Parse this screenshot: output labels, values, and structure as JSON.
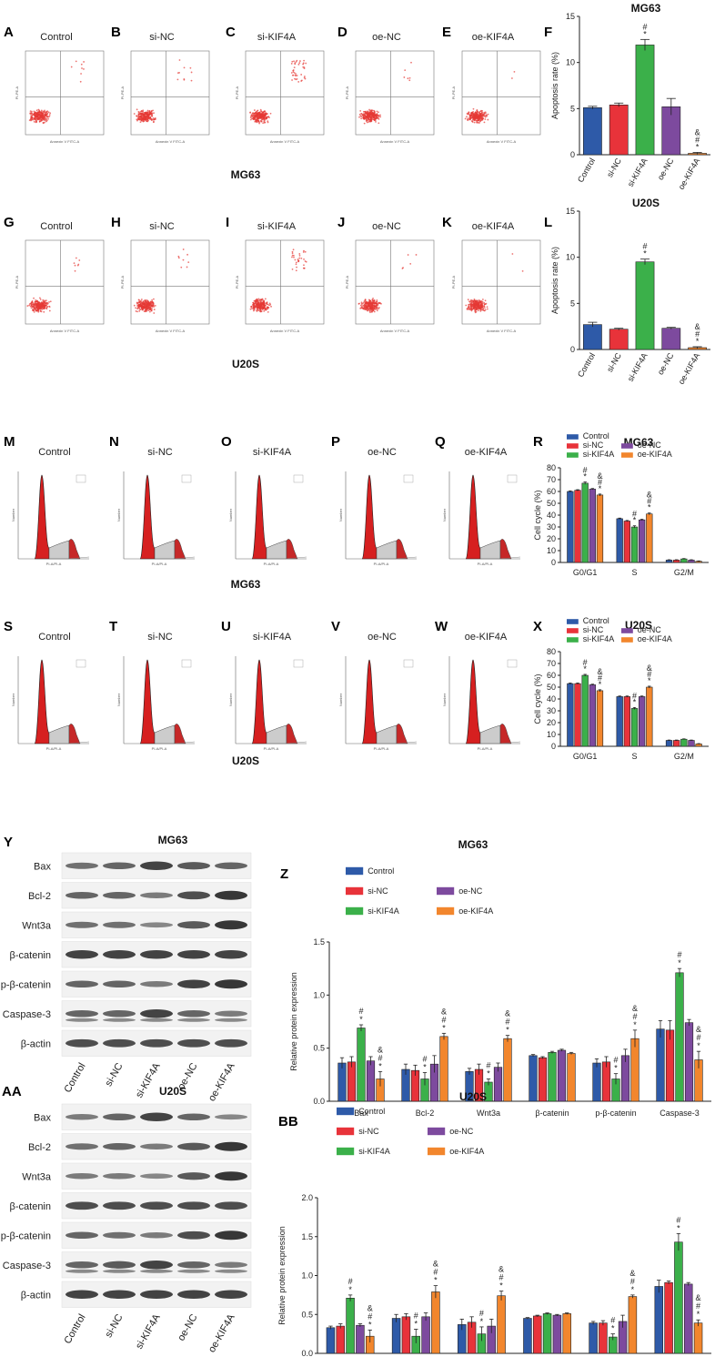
{
  "panel_letters": {
    "A": "A",
    "B": "B",
    "C": "C",
    "D": "D",
    "E": "E",
    "F": "F",
    "G": "G",
    "H": "H",
    "I": "I",
    "J": "J",
    "K": "K",
    "L": "L",
    "M": "M",
    "N": "N",
    "O": "O",
    "P": "P",
    "Q": "Q",
    "R": "R",
    "S": "S",
    "T": "T",
    "U": "U",
    "V": "V",
    "W": "W",
    "X": "X",
    "Y": "Y",
    "Z": "Z",
    "AA": "AA",
    "BB": "BB"
  },
  "groups": [
    "Control",
    "si-NC",
    "si-KIF4A",
    "oe-NC",
    "oe-KIF4A"
  ],
  "cell_lines": {
    "mg63": "MG63",
    "u20s": "U20S"
  },
  "colors": {
    "Control": "#2e5aa8",
    "si-NC": "#e8333a",
    "si-KIF4A": "#3bb04a",
    "oe-NC": "#7d4a9e",
    "oe-KIF4A": "#f2862d"
  },
  "flow_labels": {
    "y_axis": "PI-PE-A",
    "x_axis": "Annexin V FITC-A"
  },
  "cycle_labels": {
    "y_axis": "Number",
    "x_axis": "PI-A/PI-A"
  },
  "wb_proteins": [
    "Bax",
    "Bcl-2",
    "Wnt3a",
    "β-catenin",
    "p-β-catenin",
    "Caspase-3",
    "β-actin"
  ],
  "chart_data": [
    {
      "id": "F",
      "type": "bar",
      "title": "MG63",
      "categories": [
        "Control",
        "si-NC",
        "si-KIF4A",
        "oe-NC",
        "oe-KIF4A"
      ],
      "values": [
        5.1,
        5.4,
        11.9,
        5.2,
        0.15
      ],
      "errors": [
        0.15,
        0.2,
        0.6,
        0.9,
        0.1
      ],
      "sig": [
        "",
        "",
        "#\n*",
        "",
        "&\n#\n*"
      ],
      "ylabel": "Apoptosis rate (%)",
      "ylim": [
        0,
        15
      ],
      "yticks": [
        0,
        5,
        10,
        15
      ]
    },
    {
      "id": "L",
      "type": "bar",
      "title": "U20S",
      "categories": [
        "Control",
        "si-NC",
        "si-KIF4A",
        "oe-NC",
        "oe-KIF4A"
      ],
      "values": [
        2.7,
        2.2,
        9.5,
        2.3,
        0.2
      ],
      "errors": [
        0.25,
        0.1,
        0.3,
        0.1,
        0.1
      ],
      "sig": [
        "",
        "",
        "#\n*",
        "",
        "&\n#\n*"
      ],
      "ylabel": "Apoptosis rate (%)",
      "ylim": [
        0,
        15
      ],
      "yticks": [
        0,
        5,
        10,
        15
      ]
    },
    {
      "id": "R",
      "type": "bar",
      "title": "MG63",
      "categories": [
        "G0/G1",
        "S",
        "G2/M"
      ],
      "series": [
        {
          "name": "Control",
          "values": [
            60,
            37,
            2
          ],
          "errors": [
            0.5,
            0.5,
            0.3
          ]
        },
        {
          "name": "si-NC",
          "values": [
            61,
            35,
            2
          ],
          "errors": [
            0.5,
            0.5,
            0.3
          ]
        },
        {
          "name": "si-KIF4A",
          "values": [
            67,
            30,
            3
          ],
          "errors": [
            1,
            1,
            0.3
          ]
        },
        {
          "name": "oe-NC",
          "values": [
            62,
            36,
            2
          ],
          "errors": [
            0.5,
            0.5,
            0.3
          ]
        },
        {
          "name": "oe-KIF4A",
          "values": [
            57,
            41,
            1
          ],
          "errors": [
            0.8,
            0.8,
            0.3
          ]
        }
      ],
      "sig": [
        [
          "",
          "",
          "#\n*",
          "",
          "&\n#\n*"
        ],
        [
          "",
          "",
          "#\n*",
          "",
          "&\n#\n*"
        ],
        [
          "",
          "",
          "",
          "",
          ""
        ]
      ],
      "ylabel": "Cell cycle (%)",
      "ylim": [
        0,
        80
      ],
      "yticks": [
        0,
        10,
        20,
        30,
        40,
        50,
        60,
        70,
        80
      ]
    },
    {
      "id": "X",
      "type": "bar",
      "title": "U20S",
      "categories": [
        "G0/G1",
        "S",
        "G2/M"
      ],
      "series": [
        {
          "name": "Control",
          "values": [
            53,
            42,
            5
          ],
          "errors": [
            0.5,
            0.5,
            0.3
          ]
        },
        {
          "name": "si-NC",
          "values": [
            53,
            42,
            5
          ],
          "errors": [
            0.5,
            0.5,
            0.3
          ]
        },
        {
          "name": "si-KIF4A",
          "values": [
            60,
            32,
            6
          ],
          "errors": [
            0.8,
            0.8,
            0.3
          ]
        },
        {
          "name": "oe-NC",
          "values": [
            52,
            42,
            5
          ],
          "errors": [
            0.5,
            0.5,
            0.3
          ]
        },
        {
          "name": "oe-KIF4A",
          "values": [
            47,
            50,
            2
          ],
          "errors": [
            0.8,
            0.8,
            0.3
          ]
        }
      ],
      "sig": [
        [
          "",
          "",
          "#\n*",
          "",
          "&\n#\n*"
        ],
        [
          "",
          "",
          "#\n*",
          "",
          "&\n#\n*"
        ],
        [
          "",
          "",
          "",
          "",
          ""
        ]
      ],
      "ylabel": "Cell cycle (%)",
      "ylim": [
        0,
        80
      ],
      "yticks": [
        0,
        10,
        20,
        30,
        40,
        50,
        60,
        70,
        80
      ]
    },
    {
      "id": "Z",
      "type": "bar",
      "title": "MG63",
      "categories": [
        "Bax",
        "Bcl-2",
        "Wnt3a",
        "β-catenin",
        "p-β-catenin",
        "Caspase-3"
      ],
      "series": [
        {
          "name": "Control",
          "values": [
            0.36,
            0.3,
            0.28,
            0.43,
            0.36,
            0.68
          ],
          "errors": [
            0.05,
            0.05,
            0.03,
            0.01,
            0.04,
            0.08
          ]
        },
        {
          "name": "si-NC",
          "values": [
            0.37,
            0.29,
            0.3,
            0.41,
            0.37,
            0.67
          ],
          "errors": [
            0.05,
            0.05,
            0.05,
            0.01,
            0.05,
            0.09
          ]
        },
        {
          "name": "si-KIF4A",
          "values": [
            0.69,
            0.21,
            0.18,
            0.46,
            0.21,
            1.21
          ],
          "errors": [
            0.03,
            0.06,
            0.03,
            0.01,
            0.05,
            0.04
          ]
        },
        {
          "name": "oe-NC",
          "values": [
            0.38,
            0.35,
            0.32,
            0.48,
            0.43,
            0.74
          ],
          "errors": [
            0.04,
            0.08,
            0.04,
            0.01,
            0.06,
            0.03
          ]
        },
        {
          "name": "oe-KIF4A",
          "values": [
            0.21,
            0.61,
            0.59,
            0.45,
            0.59,
            0.39
          ],
          "errors": [
            0.07,
            0.03,
            0.03,
            0.01,
            0.08,
            0.08
          ]
        }
      ],
      "sig": [
        [
          "",
          "",
          "#\n*",
          "",
          "&\n#\n*"
        ],
        [
          "",
          "",
          "#\n*",
          "",
          "&\n#\n*"
        ],
        [
          "",
          "",
          "#\n*",
          "",
          "&\n#\n*"
        ],
        [
          "",
          "",
          "",
          "",
          ""
        ],
        [
          "",
          "",
          "#\n*",
          "",
          "&\n#\n*"
        ],
        [
          "",
          "",
          "#\n*",
          "",
          "&\n#\n*"
        ]
      ],
      "ylabel": "Relative protein expression",
      "ylim": [
        0,
        1.5
      ],
      "yticks": [
        0,
        0.5,
        1.0,
        1.5
      ],
      "yticklabels": [
        "0.0",
        "0.5",
        "1.0",
        "1.5"
      ]
    },
    {
      "id": "BB",
      "type": "bar",
      "title": "U20S",
      "categories": [
        "Bax",
        "Bcl-2",
        "Wnt3a",
        "β-catenin",
        "p-β-catenin",
        "Caspase-3"
      ],
      "series": [
        {
          "name": "Control",
          "values": [
            0.33,
            0.45,
            0.37,
            0.45,
            0.39,
            0.86
          ],
          "errors": [
            0.02,
            0.05,
            0.07,
            0.01,
            0.02,
            0.08
          ]
        },
        {
          "name": "si-NC",
          "values": [
            0.35,
            0.47,
            0.4,
            0.48,
            0.39,
            0.91
          ],
          "errors": [
            0.03,
            0.04,
            0.07,
            0.01,
            0.03,
            0.02
          ]
        },
        {
          "name": "si-KIF4A",
          "values": [
            0.71,
            0.22,
            0.25,
            0.51,
            0.21,
            1.43
          ],
          "errors": [
            0.04,
            0.09,
            0.09,
            0.01,
            0.04,
            0.11
          ]
        },
        {
          "name": "oe-NC",
          "values": [
            0.36,
            0.47,
            0.35,
            0.49,
            0.41,
            0.89
          ],
          "errors": [
            0.02,
            0.05,
            0.09,
            0.01,
            0.08,
            0.02
          ]
        },
        {
          "name": "oe-KIF4A",
          "values": [
            0.22,
            0.79,
            0.74,
            0.51,
            0.73,
            0.39
          ],
          "errors": [
            0.08,
            0.08,
            0.06,
            0.01,
            0.02,
            0.04
          ]
        }
      ],
      "sig": [
        [
          "",
          "",
          "#\n*",
          "",
          "&\n#\n*"
        ],
        [
          "",
          "",
          "#\n*",
          "",
          "&\n#\n*"
        ],
        [
          "",
          "",
          "#\n*",
          "",
          "&\n#\n*"
        ],
        [
          "",
          "",
          "",
          "",
          ""
        ],
        [
          "",
          "",
          "#\n*",
          "",
          "&\n#\n*"
        ],
        [
          "",
          "",
          "#\n*",
          "",
          "&\n#\n*"
        ]
      ],
      "ylabel": "Relative protein expression",
      "ylim": [
        0,
        2.0
      ],
      "yticks": [
        0,
        0.5,
        1.0,
        1.5,
        2.0
      ],
      "yticklabels": [
        "0.0",
        "0.5",
        "1.0",
        "1.5",
        "2.0"
      ]
    }
  ]
}
